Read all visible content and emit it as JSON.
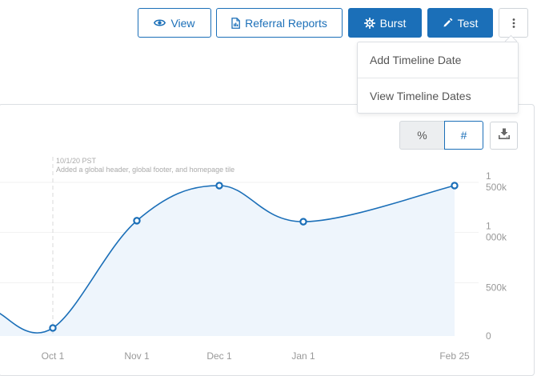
{
  "toolbar": {
    "view_label": "View",
    "referral_label": "Referral Reports",
    "burst_label": "Burst",
    "test_label": "Test"
  },
  "menu": {
    "items": [
      {
        "label": "Add Timeline Date"
      },
      {
        "label": "View Timeline Dates"
      }
    ]
  },
  "chart_controls": {
    "percent_label": "%",
    "number_label": "#"
  },
  "annotation": {
    "date": "10/1/20 PST",
    "text": "Added a global header, global footer, and homepage tile"
  },
  "chart_data": {
    "type": "area",
    "x": [
      "Sep 10",
      "Oct 1",
      "Nov 1",
      "Dec 1",
      "Jan 1",
      "Feb 25"
    ],
    "xticks": [
      "Oct 1",
      "Nov 1",
      "Dec 1",
      "Jan 1",
      "Feb 25"
    ],
    "points": [
      {
        "x": "Oct 1",
        "y": 80000
      },
      {
        "x": "Nov 1",
        "y": 1150000
      },
      {
        "x": "Dec 1",
        "y": 1500000
      },
      {
        "x": "Jan 1",
        "y": 1140000
      },
      {
        "x": "Feb 25",
        "y": 1500000
      }
    ],
    "lead_in": {
      "x": "Sep 10",
      "y": 240000
    },
    "yticks": [
      {
        "value": 0,
        "label": [
          "0"
        ]
      },
      {
        "value": 500000,
        "label": [
          "500k"
        ]
      },
      {
        "value": 1000000,
        "label": [
          "1",
          "000k"
        ]
      },
      {
        "value": 1500000,
        "label": [
          "1",
          "500k"
        ]
      }
    ],
    "ylim": [
      0,
      1500000
    ],
    "grid": true,
    "colors": {
      "line": "#1b6fb8",
      "fill": "#eef5fc",
      "grid": "#f1f1f1"
    }
  }
}
